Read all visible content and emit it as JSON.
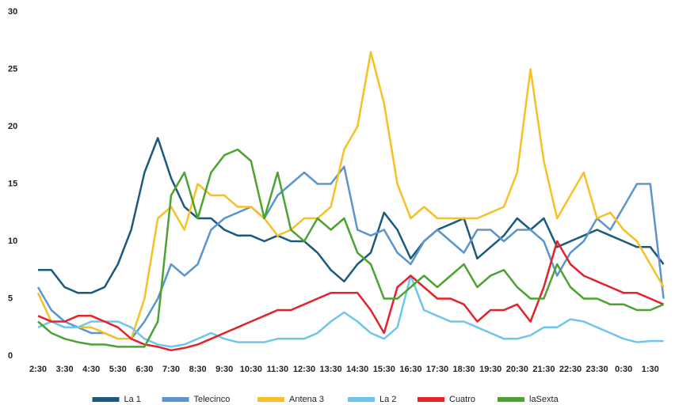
{
  "chart_data": {
    "type": "line",
    "categories": [
      "2:30",
      null,
      "3:30",
      null,
      "4:30",
      null,
      "5:30",
      null,
      "6:30",
      null,
      "7:30",
      null,
      "8:30",
      null,
      "9:30",
      null,
      "10:30",
      null,
      "11:30",
      null,
      "12:30",
      null,
      "13:30",
      null,
      "14:30",
      null,
      "15:30",
      null,
      "16:30",
      null,
      "17:30",
      null,
      "18:30",
      null,
      "19:30",
      null,
      "20:30",
      null,
      "21:30",
      null,
      "22:30",
      null,
      "23:30",
      null,
      "0:30",
      null,
      "1:30",
      null
    ],
    "series": [
      {
        "name": "La 1",
        "color": "#1c5a7d",
        "values": [
          7.5,
          7.5,
          6,
          5.5,
          5.5,
          6,
          8,
          11,
          16,
          19,
          15.5,
          13,
          12,
          12,
          11,
          10.5,
          10.5,
          10,
          10.5,
          10,
          10,
          9,
          7.5,
          6.5,
          8,
          9,
          12.5,
          11,
          8.5,
          10,
          11,
          11.5,
          12,
          8.5,
          9.5,
          10.5,
          12,
          11,
          12,
          9.5,
          10,
          10.5,
          11,
          10.5,
          10,
          9.5,
          9.5,
          8
        ]
      },
      {
        "name": "Telecinco",
        "color": "#5b95cf",
        "values": [
          6,
          4,
          3,
          2.5,
          2,
          2,
          1.5,
          1.5,
          3,
          5,
          8,
          7,
          8,
          11,
          12,
          12.5,
          13,
          12,
          14,
          15,
          16,
          15,
          15,
          16.5,
          11,
          10.5,
          11,
          9,
          8,
          10,
          11,
          10,
          9,
          11,
          11,
          10,
          11,
          11,
          10,
          7,
          9,
          10,
          12,
          11,
          13,
          15,
          15,
          5
        ]
      },
      {
        "name": "Antena 3",
        "color": "#f6c026",
        "values": [
          5.5,
          3,
          2.5,
          2.5,
          2.5,
          2,
          1.5,
          1.5,
          5,
          12,
          13,
          11,
          15,
          14,
          14,
          13,
          13,
          12,
          10.5,
          11,
          12,
          12,
          13,
          18,
          20,
          26.5,
          22,
          15,
          12,
          13,
          12,
          12,
          12,
          12,
          12.5,
          13,
          16,
          25,
          17,
          12,
          14,
          16,
          12,
          12.5,
          11,
          10,
          8,
          6
        ]
      },
      {
        "name": "La 2",
        "color": "#6ec6ec",
        "values": [
          2.5,
          3,
          2.5,
          2.5,
          3,
          3,
          3,
          2.5,
          1.5,
          1,
          0.8,
          1,
          1.5,
          2,
          1.5,
          1.2,
          1.2,
          1.2,
          1.5,
          1.5,
          1.5,
          2,
          3,
          3.8,
          3,
          2,
          1.5,
          2.5,
          7,
          4,
          3.5,
          3,
          3,
          2.5,
          2,
          1.5,
          1.5,
          1.8,
          2.5,
          2.5,
          3.2,
          3,
          2.5,
          2,
          1.5,
          1.2,
          1.3,
          1.3
        ]
      },
      {
        "name": "Cuatro",
        "color": "#e2242a",
        "values": [
          3.5,
          3,
          3,
          3.5,
          3.5,
          3,
          2.5,
          1.5,
          1,
          0.8,
          0.5,
          0.7,
          1,
          1.5,
          2,
          2.5,
          3,
          3.5,
          4,
          4,
          4.5,
          5,
          5.5,
          5.5,
          5.5,
          4,
          2,
          6,
          7,
          6,
          5,
          5,
          4.5,
          3,
          4,
          4,
          4.5,
          3,
          6,
          10,
          8,
          7,
          6.5,
          6,
          5.5,
          5.5,
          5,
          4.5
        ]
      },
      {
        "name": "laSexta",
        "color": "#4ca334",
        "values": [
          3,
          2,
          1.5,
          1.2,
          1,
          1,
          0.8,
          0.8,
          0.8,
          3,
          14,
          16,
          12,
          16,
          17.5,
          18,
          17,
          12,
          16,
          11,
          10,
          12,
          11,
          12,
          9,
          8,
          5,
          5,
          6,
          7,
          6,
          7,
          8,
          6,
          7,
          7.5,
          6,
          5,
          5,
          8,
          6,
          5,
          5,
          4.5,
          4.5,
          4,
          4,
          4.5
        ]
      }
    ],
    "ylim": [
      0,
      30
    ],
    "yticks": [
      0,
      5,
      10,
      15,
      20,
      25,
      30
    ],
    "grid": false,
    "legend": "bottom"
  }
}
